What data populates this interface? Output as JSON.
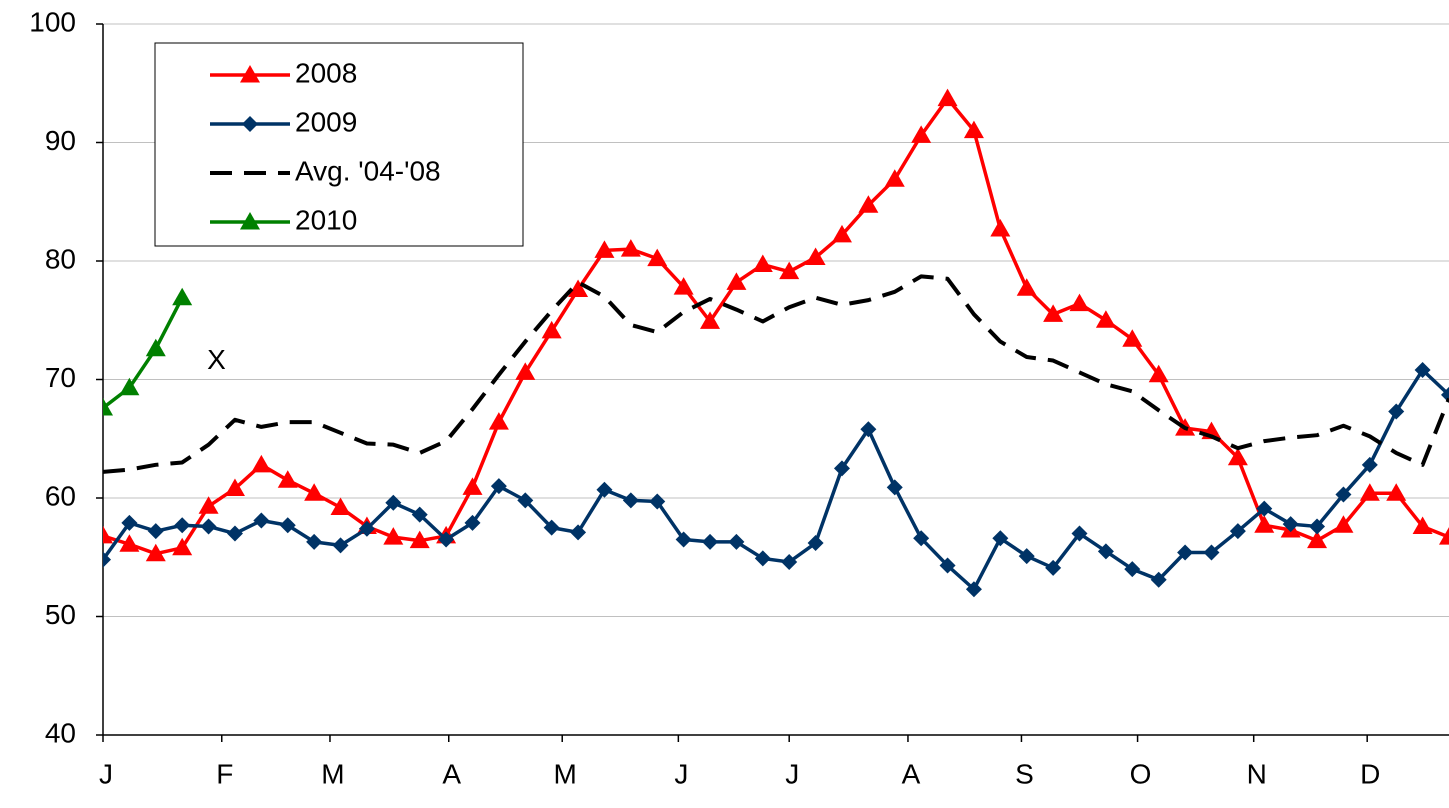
{
  "chart_data": {
    "type": "line",
    "x": [
      0,
      1,
      2,
      3,
      4,
      5,
      6,
      7,
      8,
      9,
      10,
      11,
      12,
      13,
      14,
      15,
      16,
      17,
      18,
      19,
      20,
      21,
      22,
      23,
      24,
      25,
      26,
      27,
      28,
      29,
      30,
      31,
      32,
      33,
      34,
      35,
      36,
      37,
      38,
      39,
      40,
      41,
      42,
      43,
      44,
      45,
      46,
      47,
      48,
      49,
      50,
      51
    ],
    "xlim": [
      0,
      51
    ],
    "xticks": [
      {
        "value": 0,
        "label": "J"
      },
      {
        "value": 4.5,
        "label": "F"
      },
      {
        "value": 8.6,
        "label": "M"
      },
      {
        "value": 13.1,
        "label": "A"
      },
      {
        "value": 17.4,
        "label": "M"
      },
      {
        "value": 21.8,
        "label": "J"
      },
      {
        "value": 26.0,
        "label": "J"
      },
      {
        "value": 30.5,
        "label": "A"
      },
      {
        "value": 34.8,
        "label": "S"
      },
      {
        "value": 39.2,
        "label": "O"
      },
      {
        "value": 43.6,
        "label": "N"
      },
      {
        "value": 47.9,
        "label": "D"
      }
    ],
    "ylim": [
      40,
      100
    ],
    "yticks": [
      40,
      50,
      60,
      70,
      80,
      90,
      100
    ],
    "grid": true,
    "legend": "upper left",
    "annotations": [
      {
        "text": "X",
        "x": 4.3,
        "y": 71.5
      }
    ],
    "series": [
      {
        "name": "2008",
        "color": "#ff0000",
        "marker": "triangle",
        "dash": false,
        "values": [
          56.8,
          56.1,
          55.3,
          55.8,
          59.3,
          60.8,
          62.8,
          61.5,
          60.4,
          59.2,
          57.6,
          56.7,
          56.4,
          56.8,
          60.9,
          66.4,
          70.6,
          74.1,
          77.6,
          80.9,
          81.0,
          80.2,
          77.8,
          74.9,
          78.2,
          79.7,
          79.1,
          80.3,
          82.2,
          84.7,
          86.9,
          90.6,
          93.7,
          91.0,
          82.7,
          77.7,
          75.5,
          76.4,
          75.0,
          73.4,
          70.4,
          65.9,
          65.6,
          63.4,
          57.7,
          57.3,
          56.4,
          57.7,
          60.4,
          60.4,
          57.6,
          56.7
        ]
      },
      {
        "name": "2009",
        "color": "#003366",
        "marker": "diamond",
        "dash": false,
        "values": [
          54.8,
          57.9,
          57.2,
          57.7,
          57.6,
          57.0,
          58.1,
          57.7,
          56.3,
          56.0,
          57.4,
          59.6,
          58.6,
          56.5,
          57.9,
          61.0,
          59.8,
          57.5,
          57.1,
          60.7,
          59.8,
          59.7,
          56.5,
          56.3,
          56.3,
          54.9,
          54.6,
          56.2,
          62.5,
          65.8,
          60.9,
          56.6,
          54.3,
          52.3,
          56.6,
          55.1,
          54.1,
          57.0,
          55.5,
          54.0,
          53.1,
          55.4,
          55.4,
          57.2,
          59.1,
          57.8,
          57.6,
          60.3,
          62.8,
          67.3,
          70.8,
          68.7
        ]
      },
      {
        "name": "Avg. '04-'08",
        "color": "#000000",
        "marker": "none",
        "dash": true,
        "values": [
          62.2,
          62.4,
          62.8,
          63.0,
          64.5,
          66.6,
          66.0,
          66.4,
          66.4,
          65.5,
          64.6,
          64.5,
          63.8,
          64.8,
          67.5,
          70.4,
          73.2,
          75.8,
          78.2,
          77.0,
          74.6,
          74.0,
          75.7,
          76.8,
          75.9,
          74.9,
          76.1,
          76.9,
          76.3,
          76.7,
          77.4,
          78.7,
          78.5,
          75.5,
          73.2,
          71.9,
          71.6,
          70.6,
          69.6,
          69.0,
          67.4,
          65.9,
          65.2,
          64.2,
          64.8,
          65.1,
          65.3,
          66.1,
          65.2,
          63.8,
          62.8,
          68.4
        ]
      },
      {
        "name": "2010",
        "color": "#008000",
        "marker": "triangle",
        "dash": false,
        "values": [
          67.6,
          69.3,
          72.6,
          76.9,
          null,
          null,
          null,
          null,
          null,
          null,
          null,
          null,
          null,
          null,
          null,
          null,
          null,
          null,
          null,
          null,
          null,
          null,
          null,
          null,
          null,
          null,
          null,
          null,
          null,
          null,
          null,
          null,
          null,
          null,
          null,
          null,
          null,
          null,
          null,
          null,
          null,
          null,
          null,
          null,
          null,
          null,
          null,
          null,
          null,
          null,
          null,
          null
        ]
      }
    ]
  }
}
